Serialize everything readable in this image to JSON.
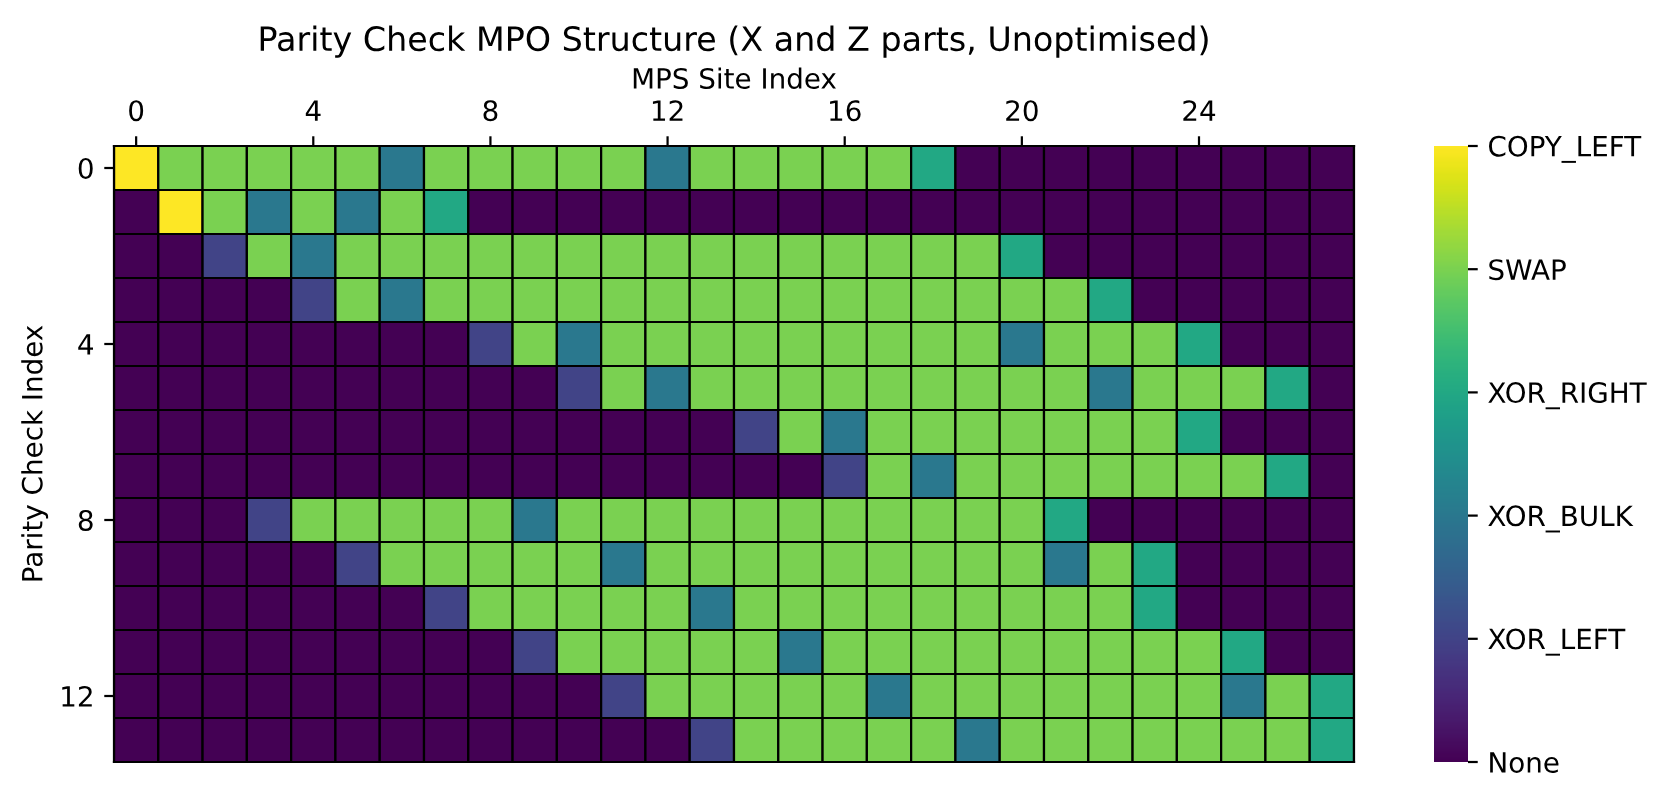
{
  "chart_data": {
    "type": "heatmap",
    "title": "Parity Check MPO Structure (X and Z parts, Unoptimised)",
    "xlabel": "MPS Site Index",
    "ylabel": "Parity Check Index",
    "categories": [
      "0",
      null,
      null,
      null,
      "4",
      null,
      null,
      null,
      "8",
      null,
      null,
      null,
      "12",
      null,
      null,
      null,
      "16",
      null,
      null,
      null,
      "20",
      null,
      null,
      null,
      "24",
      null,
      null,
      null
    ],
    "y_categories": [
      "0",
      null,
      null,
      null,
      "4",
      null,
      null,
      null,
      "8",
      null,
      null,
      null,
      "12",
      null
    ],
    "cells": [
      [
        5,
        4,
        4,
        4,
        4,
        4,
        2,
        4,
        4,
        4,
        4,
        4,
        2,
        4,
        4,
        4,
        4,
        4,
        3,
        0,
        0,
        0,
        0,
        0,
        0,
        0,
        0,
        0
      ],
      [
        0,
        5,
        4,
        2,
        4,
        2,
        4,
        3,
        0,
        0,
        0,
        0,
        0,
        0,
        0,
        0,
        0,
        0,
        0,
        0,
        0,
        0,
        0,
        0,
        0,
        0,
        0,
        0
      ],
      [
        0,
        0,
        1,
        4,
        2,
        4,
        4,
        4,
        4,
        4,
        4,
        4,
        4,
        4,
        4,
        4,
        4,
        4,
        4,
        4,
        3,
        0,
        0,
        0,
        0,
        0,
        0,
        0
      ],
      [
        0,
        0,
        0,
        0,
        1,
        4,
        2,
        4,
        4,
        4,
        4,
        4,
        4,
        4,
        4,
        4,
        4,
        4,
        4,
        4,
        4,
        4,
        3,
        0,
        0,
        0,
        0,
        0
      ],
      [
        0,
        0,
        0,
        0,
        0,
        0,
        0,
        0,
        1,
        4,
        2,
        4,
        4,
        4,
        4,
        4,
        4,
        4,
        4,
        4,
        2,
        4,
        4,
        4,
        3,
        0,
        0,
        0
      ],
      [
        0,
        0,
        0,
        0,
        0,
        0,
        0,
        0,
        0,
        0,
        1,
        4,
        2,
        4,
        4,
        4,
        4,
        4,
        4,
        4,
        4,
        4,
        2,
        4,
        4,
        4,
        3,
        0
      ],
      [
        0,
        0,
        0,
        0,
        0,
        0,
        0,
        0,
        0,
        0,
        0,
        0,
        0,
        0,
        1,
        4,
        2,
        4,
        4,
        4,
        4,
        4,
        4,
        4,
        3,
        0,
        0,
        0
      ],
      [
        0,
        0,
        0,
        0,
        0,
        0,
        0,
        0,
        0,
        0,
        0,
        0,
        0,
        0,
        0,
        0,
        1,
        4,
        2,
        4,
        4,
        4,
        4,
        4,
        4,
        4,
        3,
        0
      ],
      [
        0,
        0,
        0,
        1,
        4,
        4,
        4,
        4,
        4,
        2,
        4,
        4,
        4,
        4,
        4,
        4,
        4,
        4,
        4,
        4,
        4,
        3,
        0,
        0,
        0,
        0,
        0,
        0
      ],
      [
        0,
        0,
        0,
        0,
        0,
        1,
        4,
        4,
        4,
        4,
        4,
        2,
        4,
        4,
        4,
        4,
        4,
        4,
        4,
        4,
        4,
        2,
        4,
        3,
        0,
        0,
        0,
        0
      ],
      [
        0,
        0,
        0,
        0,
        0,
        0,
        0,
        1,
        4,
        4,
        4,
        4,
        4,
        2,
        4,
        4,
        4,
        4,
        4,
        4,
        4,
        4,
        4,
        3,
        0,
        0,
        0,
        0
      ],
      [
        0,
        0,
        0,
        0,
        0,
        0,
        0,
        0,
        0,
        1,
        4,
        4,
        4,
        4,
        4,
        2,
        4,
        4,
        4,
        4,
        4,
        4,
        4,
        4,
        4,
        3,
        0,
        0
      ],
      [
        0,
        0,
        0,
        0,
        0,
        0,
        0,
        0,
        0,
        0,
        0,
        1,
        4,
        4,
        4,
        4,
        4,
        2,
        4,
        4,
        4,
        4,
        4,
        4,
        4,
        2,
        4,
        3
      ],
      [
        0,
        0,
        0,
        0,
        0,
        0,
        0,
        0,
        0,
        0,
        0,
        0,
        0,
        1,
        4,
        4,
        4,
        4,
        4,
        2,
        4,
        4,
        4,
        4,
        4,
        4,
        4,
        3
      ]
    ],
    "clim": [
      0,
      5
    ],
    "cticks": [
      {
        "value": 0,
        "label": "None"
      },
      {
        "value": 1,
        "label": "XOR_LEFT"
      },
      {
        "value": 2,
        "label": "XOR_BULK"
      },
      {
        "value": 3,
        "label": "XOR_RIGHT"
      },
      {
        "value": 4,
        "label": "SWAP"
      },
      {
        "value": 5,
        "label": "COPY_LEFT"
      }
    ]
  }
}
